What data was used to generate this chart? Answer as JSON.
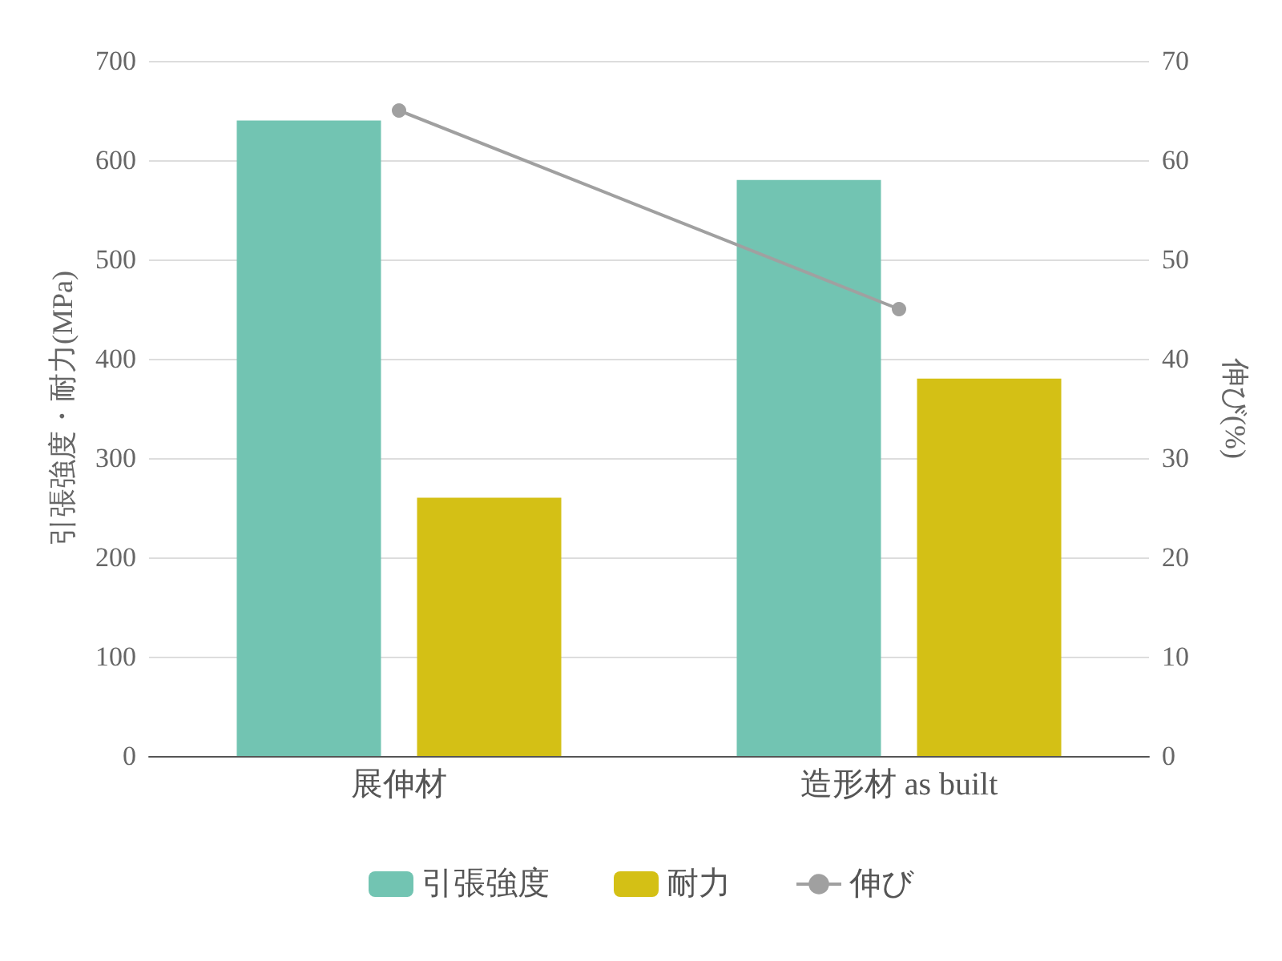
{
  "chart_data": {
    "type": "bar",
    "categories": [
      "展伸材",
      "造形材 as built"
    ],
    "ylabel": "引張強度・耐力(MPa)",
    "y2label": "伸び(%)",
    "ylim": [
      0,
      700
    ],
    "yticks": [
      0,
      100,
      200,
      300,
      400,
      500,
      600,
      700
    ],
    "y2lim": [
      0,
      70
    ],
    "y2ticks": [
      0,
      10,
      20,
      30,
      40,
      50,
      60,
      70
    ],
    "series": [
      {
        "name": "引張強度",
        "color": "#72c4b2",
        "values": [
          640,
          580
        ]
      },
      {
        "name": "耐力",
        "color": "#d4c015",
        "values": [
          260,
          380
        ]
      },
      {
        "name": "伸び",
        "type": "line",
        "axis": "y2",
        "color": "#a0a0a0",
        "values": [
          65,
          45
        ],
        "marker": "circle"
      }
    ],
    "grid": "y",
    "legend": "bottom"
  }
}
